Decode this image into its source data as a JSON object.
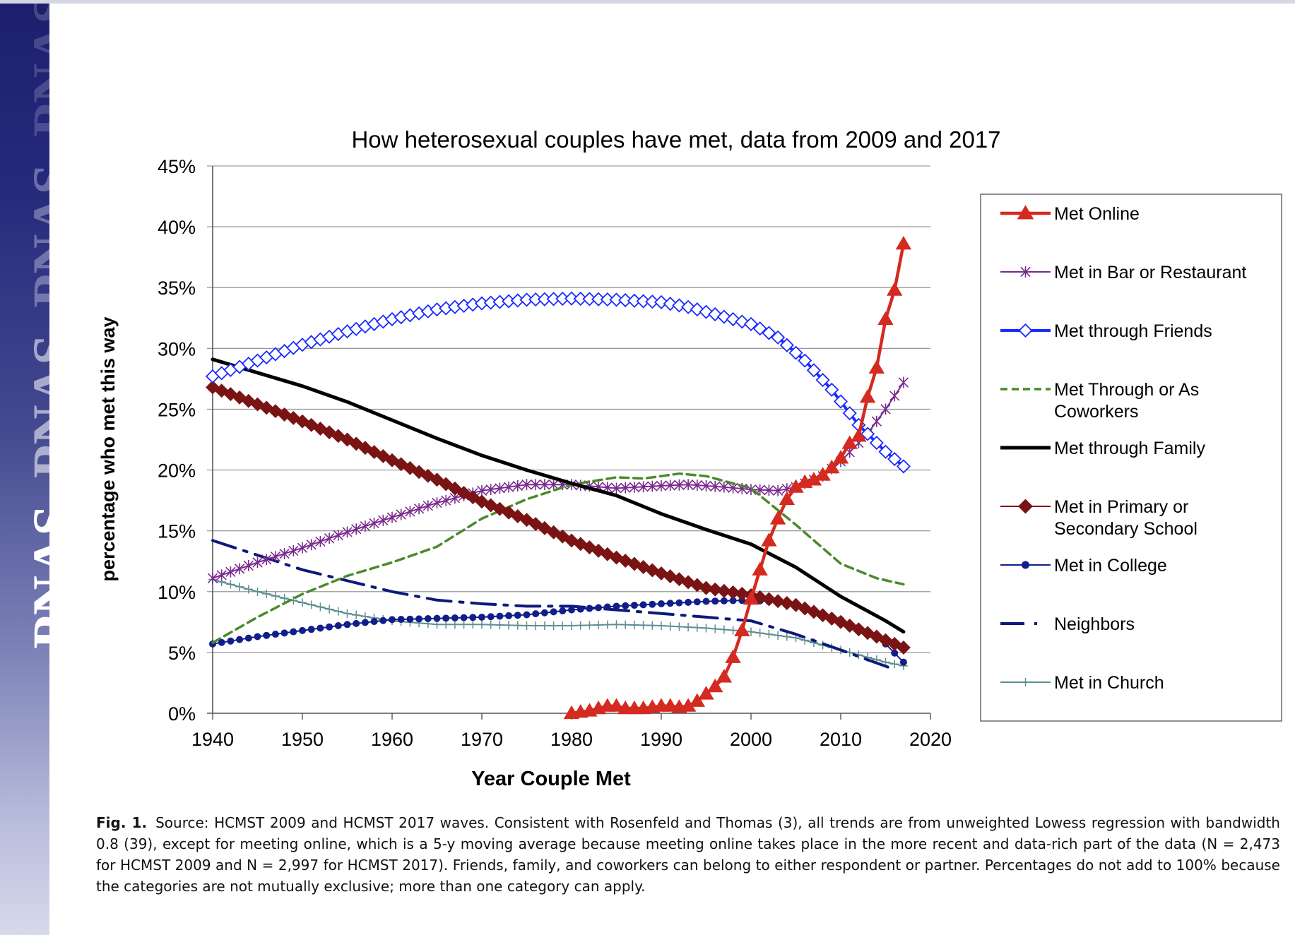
{
  "branding": {
    "journal_mark": "PNAS"
  },
  "chart_data": {
    "type": "line",
    "title": "How heterosexual couples have met, data from 2009 and 2017",
    "xlabel": "Year Couple Met",
    "ylabel": "percentage who met this way",
    "xlim": [
      1940,
      2020
    ],
    "ylim": [
      0,
      45
    ],
    "x_ticks": [
      "1940",
      "1950",
      "1960",
      "1970",
      "1980",
      "1990",
      "2000",
      "2010",
      "2020"
    ],
    "y_ticks": [
      "0%",
      "5%",
      "10%",
      "15%",
      "20%",
      "25%",
      "30%",
      "35%",
      "40%",
      "45%"
    ],
    "grid": "horizontal",
    "legend_position": "right",
    "series": [
      {
        "name": "Met Online",
        "color": "#d42a20",
        "marker": "triangle",
        "style": "solid",
        "width": 4.5,
        "x": [
          1980,
          1981,
          1982,
          1983,
          1984,
          1985,
          1986,
          1987,
          1988,
          1989,
          1990,
          1991,
          1992,
          1993,
          1994,
          1995,
          1996,
          1997,
          1998,
          1999,
          2000,
          2001,
          2002,
          2003,
          2004,
          2005,
          2006,
          2007,
          2008,
          2009,
          2010,
          2011,
          2012,
          2013,
          2014,
          2015,
          2016,
          2017
        ],
        "y": [
          0,
          0.1,
          0.2,
          0.4,
          0.6,
          0.6,
          0.4,
          0.4,
          0.4,
          0.5,
          0.6,
          0.6,
          0.5,
          0.6,
          1.0,
          1.6,
          2.2,
          3.0,
          4.6,
          6.8,
          9.4,
          11.8,
          14.2,
          16.0,
          17.6,
          18.6,
          19.0,
          19.2,
          19.6,
          20.2,
          21.0,
          22.2,
          22.8,
          26.0,
          28.4,
          32.4,
          34.8,
          38.6
        ]
      },
      {
        "name": "Met in Bar or Restaurant",
        "color": "#7a2a8e",
        "marker": "star",
        "style": "solid",
        "width": 2,
        "x": [
          1940,
          1945,
          1950,
          1955,
          1960,
          1965,
          1970,
          1975,
          1980,
          1985,
          1990,
          1993,
          1997,
          2000,
          2003,
          2005,
          2008,
          2010,
          2013,
          2015,
          2017
        ],
        "y": [
          11.1,
          12.4,
          13.6,
          14.9,
          16.1,
          17.3,
          18.3,
          18.8,
          18.8,
          18.5,
          18.7,
          18.8,
          18.6,
          18.4,
          18.3,
          18.6,
          19.5,
          20.7,
          23.0,
          25.0,
          27.2
        ]
      },
      {
        "name": "Met through Friends",
        "color": "#1a2bff",
        "marker": "diamond-open",
        "style": "solid",
        "width": 4,
        "x": [
          1940,
          1945,
          1950,
          1955,
          1960,
          1965,
          1970,
          1975,
          1980,
          1985,
          1990,
          1993,
          1996,
          2000,
          2003,
          2006,
          2009,
          2012,
          2015,
          2017
        ],
        "y": [
          27.7,
          29.0,
          30.3,
          31.4,
          32.4,
          33.2,
          33.7,
          34.0,
          34.1,
          34.0,
          33.8,
          33.4,
          32.8,
          32.0,
          30.9,
          29.0,
          26.6,
          23.7,
          21.5,
          20.3
        ]
      },
      {
        "name": "Met Through or As Coworkers",
        "color": "#4a8a2a",
        "marker": "none",
        "style": "dashed",
        "width": 3.5,
        "x": [
          1940,
          1945,
          1950,
          1955,
          1960,
          1965,
          1970,
          1975,
          1980,
          1985,
          1988,
          1990,
          1992,
          1995,
          2000,
          2005,
          2010,
          2014,
          2017
        ],
        "y": [
          5.8,
          7.9,
          9.8,
          11.3,
          12.4,
          13.7,
          16.0,
          17.6,
          18.8,
          19.4,
          19.3,
          19.5,
          19.7,
          19.5,
          18.5,
          15.5,
          12.3,
          11.1,
          10.6
        ]
      },
      {
        "name": "Met through Family",
        "color": "#000000",
        "marker": "none",
        "style": "solid",
        "width": 5,
        "x": [
          1940,
          1945,
          1950,
          1955,
          1960,
          1965,
          1970,
          1975,
          1980,
          1985,
          1990,
          1995,
          2000,
          2005,
          2010,
          2015,
          2017
        ],
        "y": [
          29.1,
          28.0,
          26.9,
          25.6,
          24.1,
          22.6,
          21.2,
          20.0,
          18.9,
          17.9,
          16.4,
          15.1,
          13.9,
          12.0,
          9.6,
          7.6,
          6.7
        ]
      },
      {
        "name": "Met in Primary or Secondary School",
        "color": "#7a1414",
        "marker": "diamond",
        "style": "solid",
        "width": 2,
        "x": [
          1940,
          1945,
          1950,
          1955,
          1960,
          1965,
          1970,
          1975,
          1980,
          1985,
          1990,
          1995,
          2000,
          2005,
          2010,
          2015,
          2017
        ],
        "y": [
          26.8,
          25.4,
          24.0,
          22.5,
          20.8,
          19.2,
          17.4,
          15.9,
          14.2,
          12.8,
          11.5,
          10.3,
          9.7,
          8.9,
          7.5,
          6.0,
          5.4
        ]
      },
      {
        "name": "Met in College",
        "color": "#111e8a",
        "marker": "dot",
        "style": "solid",
        "width": 2,
        "x": [
          1940,
          1945,
          1950,
          1955,
          1960,
          1965,
          1970,
          1975,
          1980,
          1985,
          1990,
          1995,
          2000,
          2005,
          2010,
          2013,
          2015,
          2017
        ],
        "y": [
          5.7,
          6.3,
          6.8,
          7.3,
          7.7,
          7.8,
          7.9,
          8.1,
          8.5,
          8.8,
          9.0,
          9.2,
          9.3,
          9.0,
          7.7,
          6.6,
          5.7,
          4.2
        ]
      },
      {
        "name": "Neighbors",
        "color": "#0c1a7a",
        "marker": "none",
        "style": "dashdot",
        "width": 4,
        "x": [
          1940,
          1945,
          1950,
          1955,
          1960,
          1965,
          1970,
          1975,
          1980,
          1985,
          1990,
          1995,
          2000,
          2005,
          2010,
          2013,
          2016
        ],
        "y": [
          14.2,
          13.0,
          11.8,
          10.9,
          10.0,
          9.3,
          9.0,
          8.8,
          8.8,
          8.5,
          8.2,
          7.9,
          7.6,
          6.5,
          5.2,
          4.4,
          3.6
        ]
      },
      {
        "name": "Met in Church",
        "color": "#5f8e92",
        "marker": "plus",
        "style": "solid",
        "width": 2,
        "x": [
          1940,
          1945,
          1950,
          1955,
          1960,
          1965,
          1970,
          1975,
          1980,
          1985,
          1990,
          1995,
          2000,
          2005,
          2010,
          2015,
          2017
        ],
        "y": [
          11.0,
          10.0,
          9.1,
          8.2,
          7.6,
          7.3,
          7.3,
          7.2,
          7.2,
          7.3,
          7.2,
          7.0,
          6.7,
          6.2,
          5.2,
          4.2,
          3.9
        ]
      }
    ]
  },
  "legend_lines": [
    [
      "Met Online"
    ],
    [
      "Met in Bar or Restaurant"
    ],
    [
      "Met through Friends"
    ],
    [
      "Met Through or As",
      "Coworkers"
    ],
    [
      "Met through Family"
    ],
    [
      "Met in Primary or",
      "Secondary School"
    ],
    [
      "Met in College"
    ],
    [
      "Neighbors"
    ],
    [
      "Met in Church"
    ]
  ],
  "caption": {
    "label": "Fig. 1.",
    "text": "Source: HCMST 2009 and HCMST 2017 waves. Consistent with Rosenfeld and Thomas (3), all trends are from unweighted Lowess regression with bandwidth 0.8 (39), except for meeting online, which is a 5-y moving average because meeting online takes place in the more recent and data-rich part of the data (N = 2,473 for HCMST 2009 and N = 2,997 for HCMST 2017). Friends, family, and coworkers can belong to either respondent or partner. Percentages do not add to 100% because the categories are not mutually exclusive; more than one category can apply."
  }
}
